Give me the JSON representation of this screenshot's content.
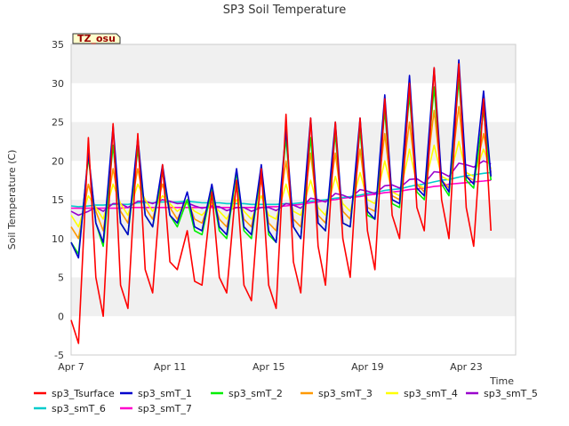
{
  "chart_data": {
    "type": "line",
    "title": "SP3 Soil Temperature",
    "xlabel": "Time",
    "ylabel": "Soil Temperature (C)",
    "badge": "TZ_osu",
    "xlim": [
      0,
      18
    ],
    "ylim": [
      -5,
      35
    ],
    "yticks": [
      -5,
      0,
      5,
      10,
      15,
      20,
      25,
      30,
      35
    ],
    "xticks": [
      {
        "x": 0,
        "label": "Apr 7"
      },
      {
        "x": 4,
        "label": "Apr 11"
      },
      {
        "x": 8,
        "label": "Apr 15"
      },
      {
        "x": 12,
        "label": "Apr 19"
      },
      {
        "x": 16,
        "label": "Apr 23"
      }
    ],
    "x": [
      0.0,
      0.3,
      0.7,
      1.0,
      1.3,
      1.7,
      2.0,
      2.3,
      2.7,
      3.0,
      3.3,
      3.7,
      4.0,
      4.3,
      4.7,
      5.0,
      5.3,
      5.7,
      6.0,
      6.3,
      6.7,
      7.0,
      7.3,
      7.7,
      8.0,
      8.3,
      8.7,
      9.0,
      9.3,
      9.7,
      10.0,
      10.3,
      10.7,
      11.0,
      11.3,
      11.7,
      12.0,
      12.3,
      12.7,
      13.0,
      13.3,
      13.7,
      14.0,
      14.3,
      14.7,
      15.0,
      15.3,
      15.7,
      16.0,
      16.3,
      16.7,
      17.0
    ],
    "series": [
      {
        "name": "sp3_Tsurface",
        "color": "#ff0000",
        "values": [
          -0.5,
          -3.5,
          23.0,
          5.0,
          0.0,
          24.8,
          4.0,
          1.0,
          23.5,
          6.0,
          3.0,
          19.5,
          7.0,
          6.0,
          11.0,
          4.5,
          4.0,
          16.0,
          5.0,
          3.0,
          17.5,
          4.0,
          2.0,
          19.0,
          4.0,
          1.0,
          26.0,
          7.0,
          3.0,
          25.5,
          9.0,
          4.0,
          25.0,
          10.0,
          5.0,
          25.5,
          11.0,
          6.0,
          28.0,
          13.0,
          10.0,
          30.0,
          14.0,
          11.0,
          32.0,
          15.0,
          10.0,
          32.5,
          14.0,
          9.0,
          28.0,
          11.0
        ]
      },
      {
        "name": "sp3_smT_1",
        "color": "#0000cc",
        "values": [
          9.5,
          7.5,
          21.0,
          12.0,
          9.5,
          24.5,
          12.0,
          10.5,
          23.0,
          13.0,
          11.5,
          19.5,
          13.0,
          12.0,
          16.0,
          11.5,
          11.0,
          17.0,
          11.5,
          10.5,
          19.0,
          11.5,
          10.5,
          19.5,
          11.0,
          9.5,
          24.0,
          11.5,
          10.0,
          25.5,
          12.0,
          11.0,
          25.0,
          12.0,
          11.5,
          25.5,
          13.5,
          12.5,
          28.5,
          15.0,
          14.5,
          31.0,
          16.5,
          15.5,
          32.0,
          17.5,
          16.0,
          33.0,
          18.0,
          17.0,
          29.0,
          18.0
        ]
      },
      {
        "name": "sp3_smT_2",
        "color": "#00ee00",
        "values": [
          9.5,
          8.0,
          20.5,
          12.0,
          9.0,
          22.0,
          12.0,
          10.5,
          21.5,
          13.0,
          11.5,
          18.5,
          13.0,
          11.5,
          15.0,
          11.0,
          10.5,
          16.5,
          11.0,
          10.0,
          18.5,
          11.0,
          10.0,
          19.0,
          10.5,
          9.5,
          23.0,
          11.5,
          10.0,
          23.0,
          12.0,
          11.0,
          23.5,
          12.0,
          11.5,
          24.0,
          13.0,
          12.5,
          26.5,
          14.5,
          14.0,
          28.5,
          16.0,
          15.0,
          29.5,
          17.0,
          15.5,
          30.5,
          17.5,
          16.5,
          26.5,
          17.5
        ]
      },
      {
        "name": "sp3_smT_3",
        "color": "#ff9900",
        "values": [
          11.5,
          10.0,
          17.0,
          13.5,
          11.0,
          19.0,
          13.5,
          12.0,
          19.0,
          14.0,
          12.5,
          17.0,
          14.0,
          12.5,
          15.0,
          12.5,
          12.0,
          15.5,
          12.5,
          11.5,
          16.5,
          12.5,
          11.5,
          17.5,
          12.0,
          11.0,
          20.0,
          12.5,
          11.5,
          21.0,
          13.0,
          12.0,
          21.0,
          13.5,
          12.5,
          21.5,
          14.0,
          13.5,
          23.5,
          15.5,
          15.0,
          25.0,
          17.0,
          16.0,
          26.5,
          17.5,
          16.5,
          27.0,
          18.0,
          17.5,
          23.5,
          18.5
        ]
      },
      {
        "name": "sp3_smT_4",
        "color": "#ffff00",
        "values": [
          13.0,
          11.5,
          15.5,
          14.0,
          12.5,
          17.0,
          14.5,
          13.0,
          17.0,
          15.0,
          13.5,
          15.5,
          14.5,
          13.5,
          14.5,
          13.5,
          13.0,
          14.5,
          13.5,
          12.5,
          15.0,
          13.5,
          12.5,
          15.5,
          13.0,
          12.5,
          17.0,
          13.5,
          13.0,
          17.5,
          14.0,
          13.0,
          18.0,
          14.5,
          13.5,
          18.5,
          15.0,
          14.5,
          20.0,
          16.0,
          15.5,
          21.5,
          17.0,
          16.5,
          22.0,
          18.0,
          17.5,
          22.5,
          18.5,
          18.0,
          21.5,
          19.0
        ]
      },
      {
        "name": "sp3_smT_5",
        "color": "#9900cc",
        "values": [
          13.5,
          13.0,
          13.5,
          14.0,
          13.5,
          14.5,
          14.5,
          14.0,
          14.8,
          14.8,
          14.5,
          15.0,
          14.8,
          14.5,
          14.6,
          14.2,
          13.9,
          14.2,
          14.1,
          13.6,
          14.0,
          14.0,
          13.5,
          14.0,
          14.0,
          13.6,
          14.5,
          14.3,
          13.9,
          15.2,
          15.0,
          14.7,
          15.8,
          15.6,
          15.2,
          16.3,
          16.1,
          15.8,
          16.8,
          16.9,
          16.5,
          17.6,
          17.7,
          17.1,
          18.6,
          18.5,
          18.0,
          19.7,
          19.5,
          19.2,
          20.0,
          19.6
        ]
      },
      {
        "name": "sp3_smT_6",
        "color": "#00cccc",
        "values": [
          14.2,
          14.1,
          14.2,
          14.3,
          14.3,
          14.4,
          14.4,
          14.4,
          14.6,
          14.6,
          14.6,
          14.7,
          14.7,
          14.7,
          14.8,
          14.7,
          14.6,
          14.6,
          14.6,
          14.5,
          14.5,
          14.5,
          14.4,
          14.4,
          14.4,
          14.4,
          14.5,
          14.5,
          14.6,
          14.8,
          14.9,
          15.0,
          15.2,
          15.3,
          15.4,
          15.6,
          15.8,
          15.9,
          16.2,
          16.3,
          16.4,
          16.7,
          16.9,
          17.0,
          17.3,
          17.5,
          17.6,
          17.9,
          18.1,
          18.2,
          18.4,
          18.5
        ]
      },
      {
        "name": "sp3_smT_7",
        "color": "#ff00cc",
        "values": [
          13.9,
          13.9,
          13.9,
          13.9,
          13.9,
          13.9,
          13.9,
          14.0,
          14.0,
          14.0,
          14.0,
          14.0,
          14.0,
          14.0,
          14.0,
          14.0,
          14.0,
          14.0,
          14.0,
          14.0,
          14.0,
          14.0,
          14.0,
          14.0,
          14.1,
          14.1,
          14.2,
          14.3,
          14.4,
          14.6,
          14.7,
          14.9,
          15.0,
          15.2,
          15.3,
          15.4,
          15.6,
          15.7,
          15.9,
          16.0,
          16.1,
          16.3,
          16.4,
          16.5,
          16.7,
          16.8,
          17.0,
          17.1,
          17.2,
          17.3,
          17.4,
          17.5
        ]
      }
    ],
    "legend_position": "bottom",
    "grid": "horizontal bands"
  }
}
